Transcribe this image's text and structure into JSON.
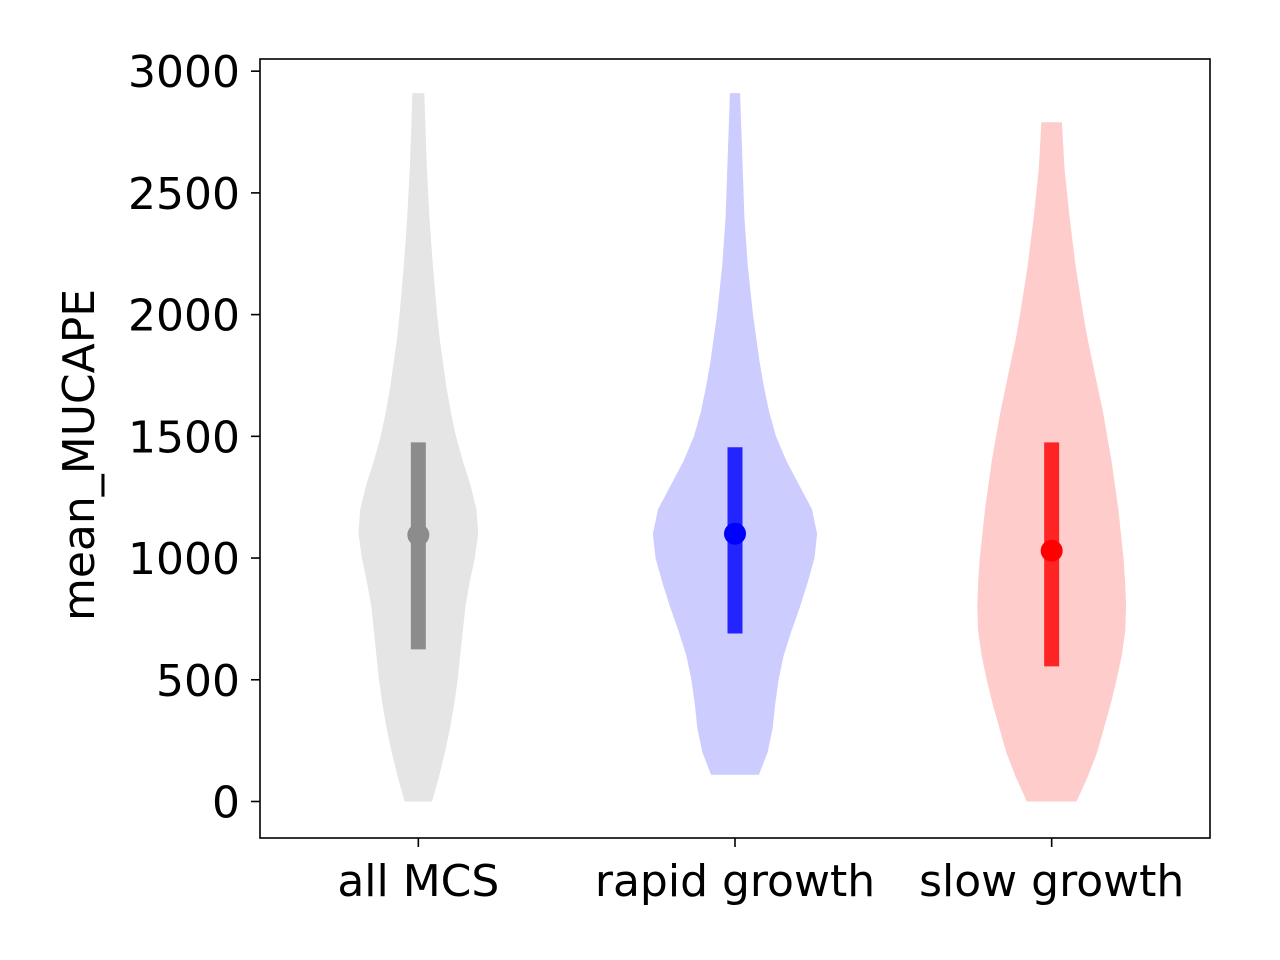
{
  "chart_data": {
    "type": "violin",
    "title": "",
    "xlabel": "",
    "ylabel": "mean_MUCAPE",
    "ylim": [
      -150,
      3050
    ],
    "yticks": [
      0,
      500,
      1000,
      1500,
      2000,
      2500,
      3000
    ],
    "ytick_labels": [
      "0",
      "500",
      "1000",
      "1500",
      "2000",
      "2500",
      "3000"
    ],
    "grid": false,
    "categories": [
      "all MCS",
      "rapid growth",
      "slow growth"
    ],
    "series": [
      {
        "category": "all MCS",
        "fill_color": "#e5e5e5",
        "marker_color": "#8c8c8c",
        "min": 0,
        "max": 2910,
        "median": 1095,
        "iqr": [
          625,
          1475
        ],
        "density": [
          [
            0,
            0.16
          ],
          [
            100,
            0.24
          ],
          [
            200,
            0.31
          ],
          [
            300,
            0.37
          ],
          [
            400,
            0.42
          ],
          [
            500,
            0.46
          ],
          [
            600,
            0.49
          ],
          [
            700,
            0.52
          ],
          [
            800,
            0.55
          ],
          [
            900,
            0.6
          ],
          [
            1000,
            0.66
          ],
          [
            1100,
            0.7
          ],
          [
            1200,
            0.68
          ],
          [
            1300,
            0.61
          ],
          [
            1400,
            0.52
          ],
          [
            1500,
            0.44
          ],
          [
            1600,
            0.38
          ],
          [
            1700,
            0.33
          ],
          [
            1800,
            0.29
          ],
          [
            1900,
            0.25
          ],
          [
            2000,
            0.22
          ],
          [
            2200,
            0.17
          ],
          [
            2400,
            0.13
          ],
          [
            2600,
            0.1
          ],
          [
            2800,
            0.08
          ],
          [
            2910,
            0.07
          ]
        ]
      },
      {
        "category": "rapid growth",
        "fill_color": "#ccccff",
        "marker_color": "#0000ff",
        "min": 110,
        "max": 2910,
        "median": 1100,
        "iqr": [
          690,
          1455
        ],
        "density": [
          [
            110,
            0.28
          ],
          [
            200,
            0.38
          ],
          [
            300,
            0.44
          ],
          [
            400,
            0.47
          ],
          [
            500,
            0.51
          ],
          [
            600,
            0.57
          ],
          [
            700,
            0.66
          ],
          [
            800,
            0.76
          ],
          [
            900,
            0.85
          ],
          [
            1000,
            0.93
          ],
          [
            1100,
            0.96
          ],
          [
            1200,
            0.9
          ],
          [
            1300,
            0.75
          ],
          [
            1400,
            0.6
          ],
          [
            1500,
            0.48
          ],
          [
            1600,
            0.4
          ],
          [
            1700,
            0.34
          ],
          [
            1800,
            0.29
          ],
          [
            1900,
            0.25
          ],
          [
            2000,
            0.21
          ],
          [
            2200,
            0.15
          ],
          [
            2400,
            0.11
          ],
          [
            2600,
            0.09
          ],
          [
            2800,
            0.07
          ],
          [
            2910,
            0.06
          ]
        ]
      },
      {
        "category": "slow growth",
        "fill_color": "#ffcccc",
        "marker_color": "#ff0000",
        "min": 0,
        "max": 2790,
        "median": 1030,
        "iqr": [
          555,
          1475
        ],
        "density": [
          [
            0,
            0.29
          ],
          [
            100,
            0.42
          ],
          [
            200,
            0.53
          ],
          [
            300,
            0.61
          ],
          [
            400,
            0.69
          ],
          [
            500,
            0.76
          ],
          [
            600,
            0.82
          ],
          [
            700,
            0.86
          ],
          [
            800,
            0.87
          ],
          [
            900,
            0.86
          ],
          [
            1000,
            0.84
          ],
          [
            1100,
            0.81
          ],
          [
            1200,
            0.78
          ],
          [
            1300,
            0.74
          ],
          [
            1400,
            0.7
          ],
          [
            1500,
            0.65
          ],
          [
            1600,
            0.6
          ],
          [
            1700,
            0.54
          ],
          [
            1800,
            0.48
          ],
          [
            1900,
            0.42
          ],
          [
            2000,
            0.37
          ],
          [
            2200,
            0.28
          ],
          [
            2400,
            0.21
          ],
          [
            2600,
            0.15
          ],
          [
            2790,
            0.12
          ]
        ]
      }
    ]
  }
}
